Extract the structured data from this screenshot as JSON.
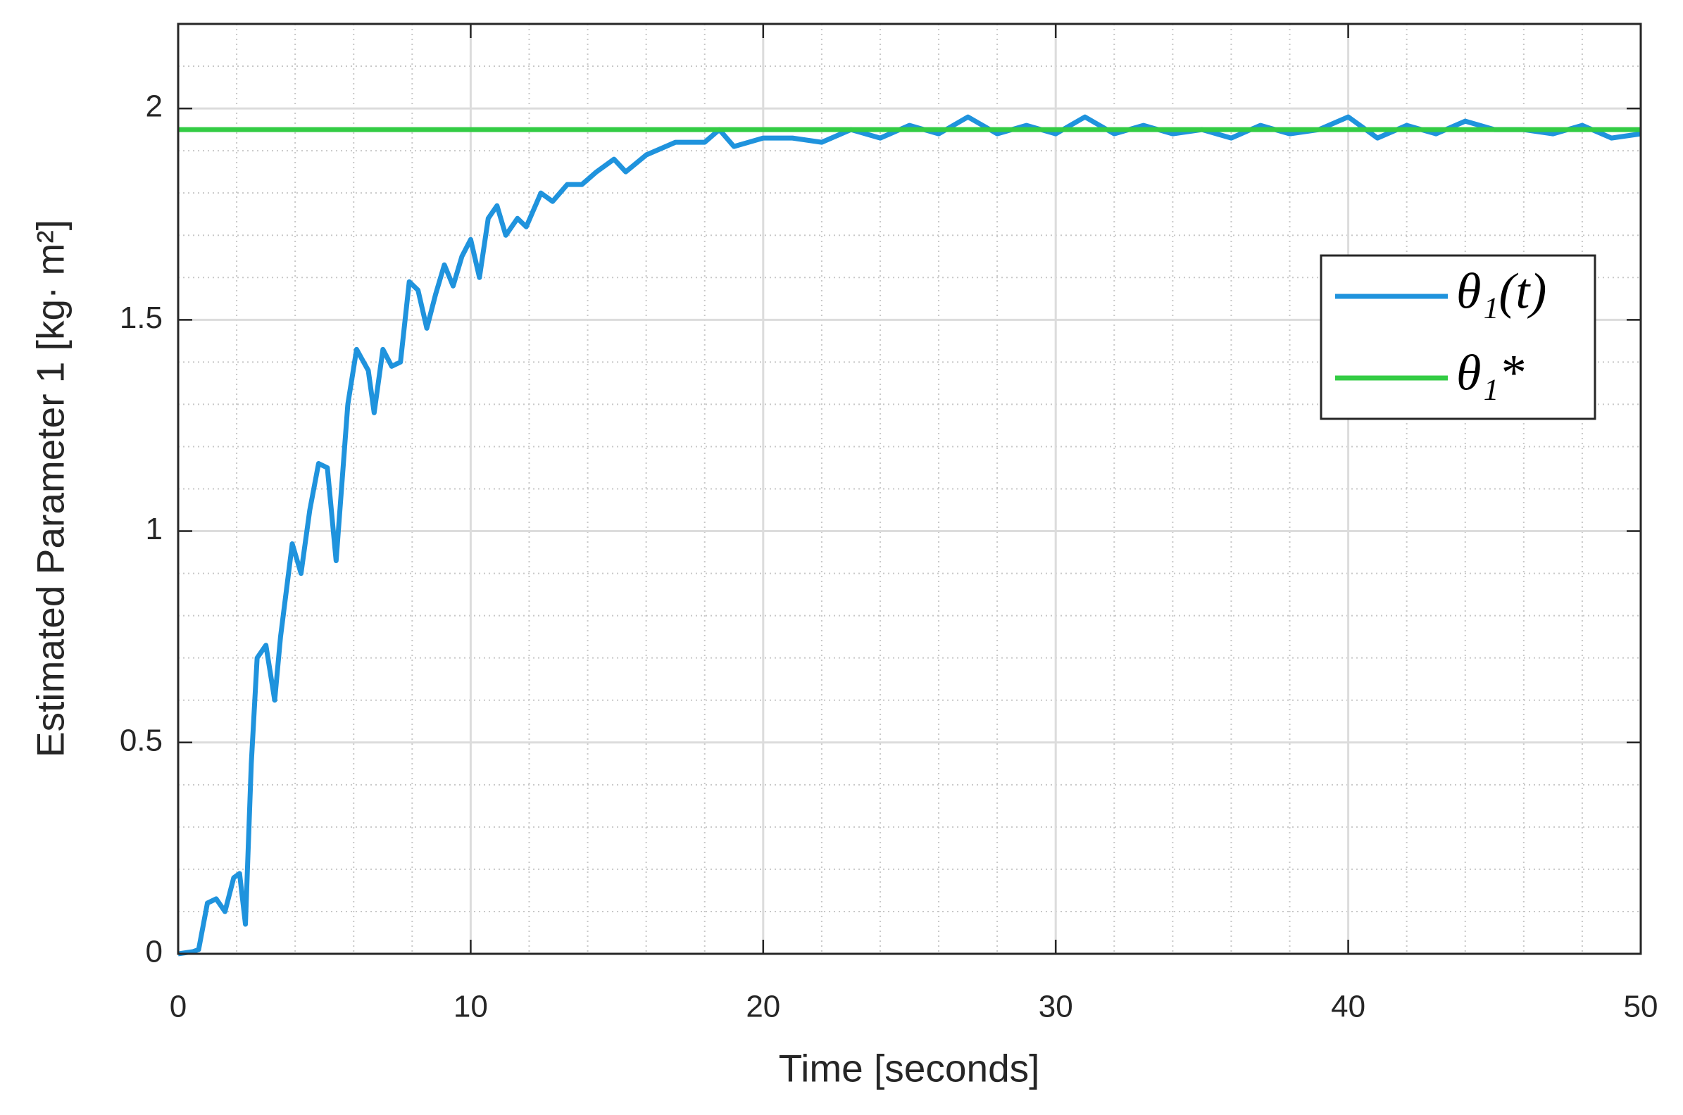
{
  "chart_data": {
    "type": "line",
    "xlabel": "Time [seconds]",
    "ylabel": "Estimated Parameter 1 [kg· m²]",
    "xlim": [
      0,
      50
    ],
    "xticks": [
      0,
      10,
      20,
      30,
      40,
      50
    ],
    "ylim": [
      0,
      2.2
    ],
    "yticks": [
      0,
      0.5,
      1,
      1.5,
      2
    ],
    "grid": true,
    "legend": "right",
    "series": [
      {
        "name": "θ₁(t)",
        "color": "#1f93dd",
        "x": [
          0,
          0.5,
          0.7,
          1.0,
          1.3,
          1.6,
          1.9,
          2.1,
          2.3,
          2.5,
          2.7,
          3.0,
          3.3,
          3.5,
          3.9,
          4.2,
          4.5,
          4.8,
          5.1,
          5.4,
          5.8,
          6.1,
          6.5,
          6.7,
          7.0,
          7.3,
          7.6,
          7.9,
          8.2,
          8.5,
          8.8,
          9.1,
          9.4,
          9.7,
          10,
          10.3,
          10.6,
          10.9,
          11.2,
          11.6,
          11.9,
          12.4,
          12.8,
          13.3,
          13.8,
          14.3,
          14.9,
          15.3,
          16,
          17,
          18,
          18.5,
          19,
          20,
          21,
          22,
          23,
          24,
          25,
          26,
          27,
          28,
          29,
          30,
          31,
          32,
          33,
          34,
          35,
          36,
          37,
          38,
          39,
          40,
          41,
          42,
          43,
          44,
          45,
          46,
          47,
          48,
          49,
          50
        ],
        "values": [
          0,
          0.005,
          0.01,
          0.12,
          0.13,
          0.1,
          0.18,
          0.19,
          0.07,
          0.45,
          0.7,
          0.73,
          0.6,
          0.75,
          0.97,
          0.9,
          1.05,
          1.16,
          1.15,
          0.93,
          1.3,
          1.43,
          1.38,
          1.28,
          1.43,
          1.39,
          1.4,
          1.59,
          1.57,
          1.48,
          1.56,
          1.63,
          1.58,
          1.65,
          1.69,
          1.6,
          1.74,
          1.77,
          1.7,
          1.74,
          1.72,
          1.8,
          1.78,
          1.82,
          1.82,
          1.85,
          1.88,
          1.85,
          1.89,
          1.92,
          1.92,
          1.95,
          1.91,
          1.93,
          1.93,
          1.92,
          1.95,
          1.93,
          1.96,
          1.94,
          1.98,
          1.94,
          1.96,
          1.94,
          1.98,
          1.94,
          1.96,
          1.94,
          1.95,
          1.93,
          1.96,
          1.94,
          1.95,
          1.98,
          1.93,
          1.96,
          1.94,
          1.97,
          1.95,
          1.95,
          1.94,
          1.96,
          1.93,
          1.94
        ]
      },
      {
        "name": "θ₁*",
        "color": "#33cc44",
        "x": [
          0,
          50
        ],
        "values": [
          1.95,
          1.95
        ]
      }
    ]
  }
}
